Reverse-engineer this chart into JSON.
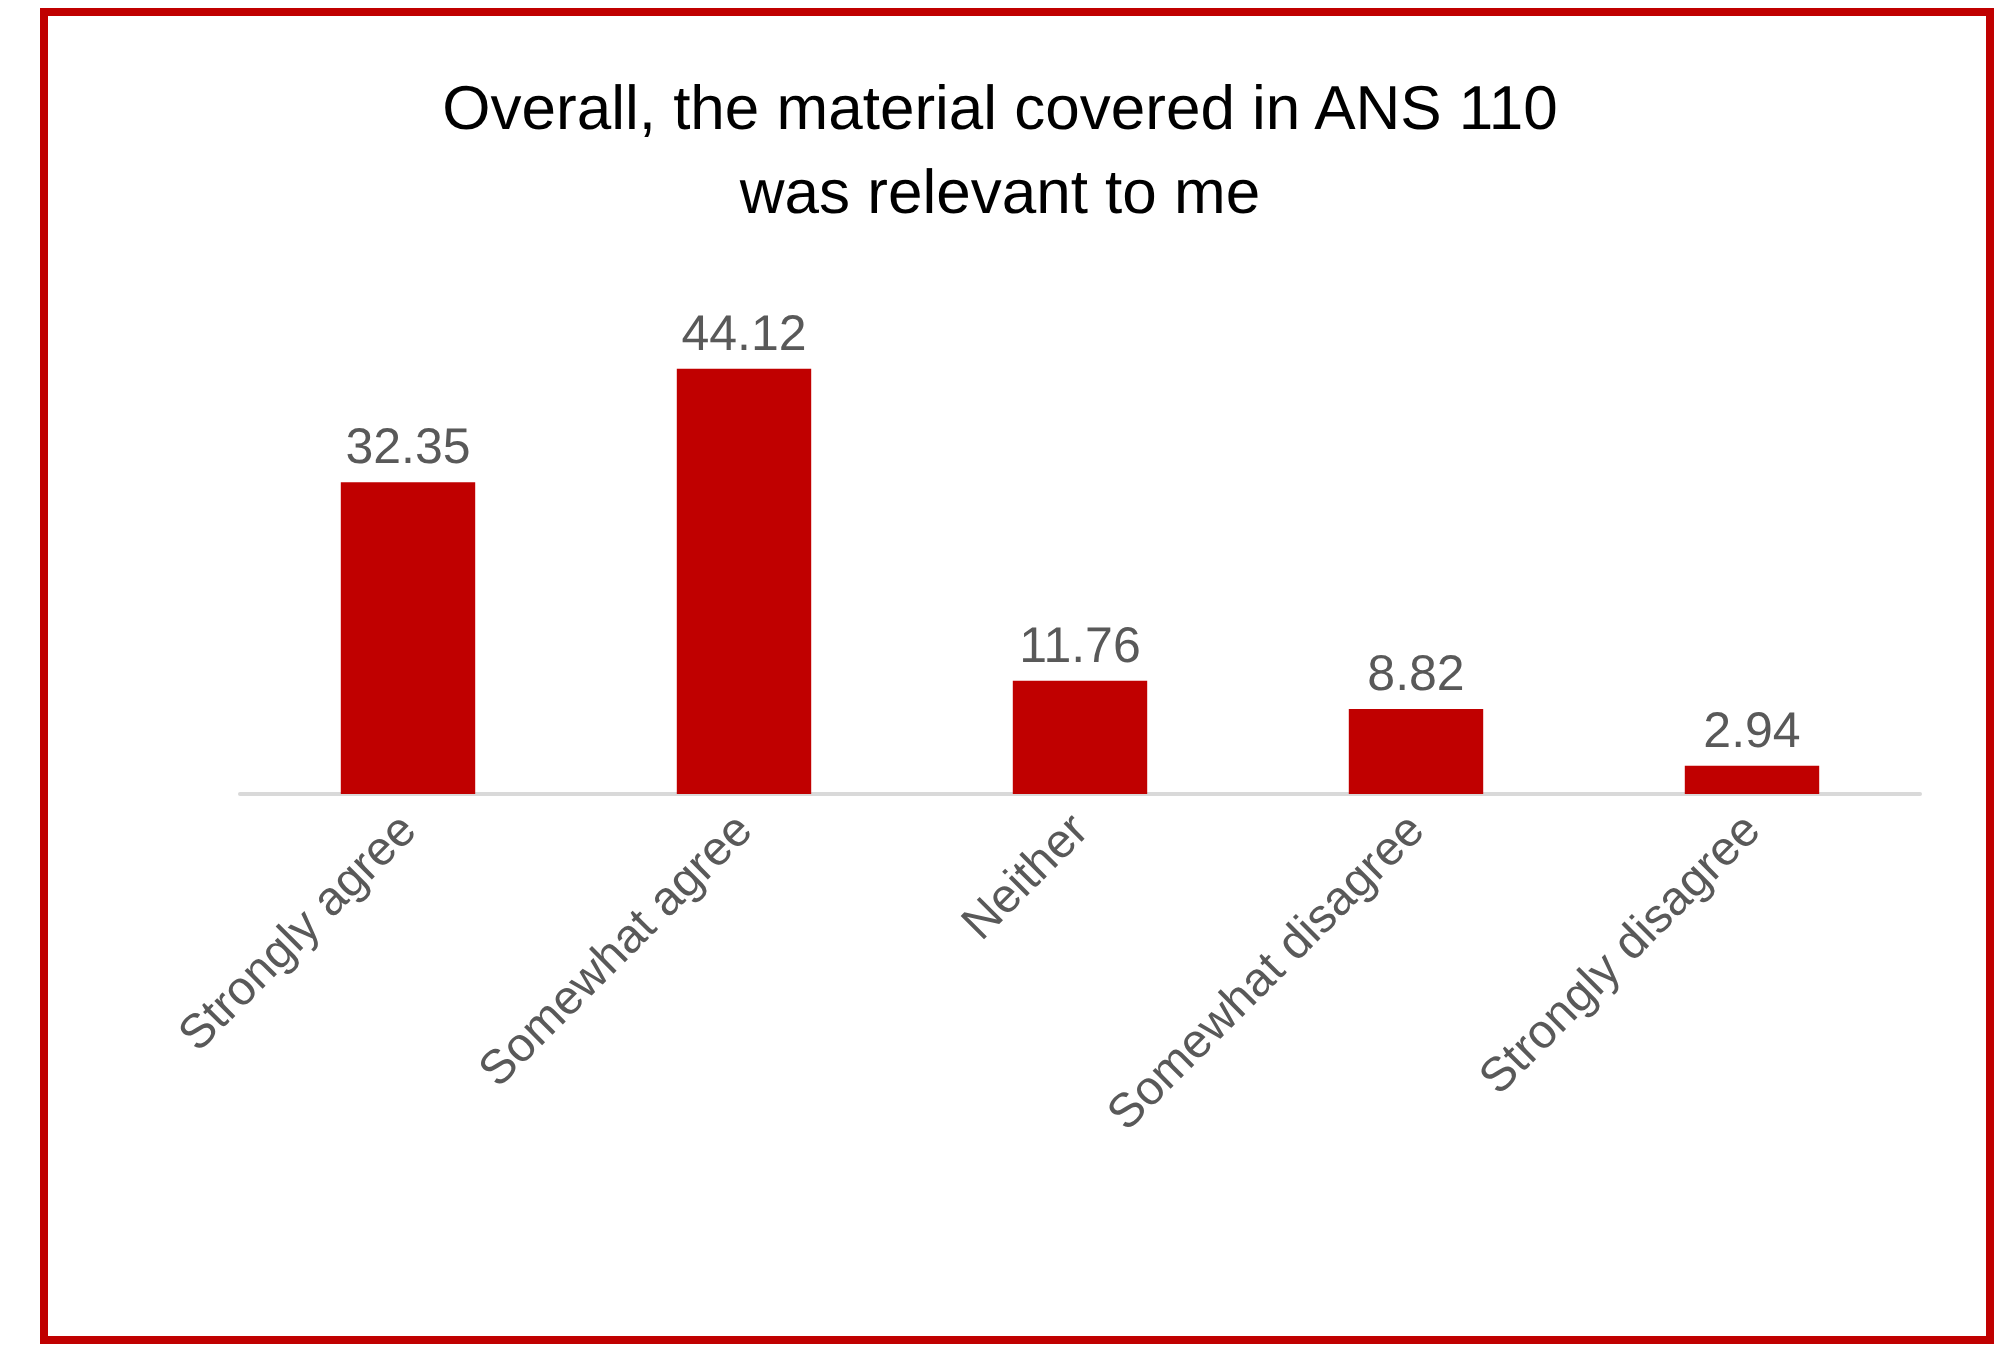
{
  "chart_data": {
    "type": "bar",
    "title": "Overall, the material covered in ANS 110\nwas relevant to me",
    "categories": [
      "Strongly agree",
      "Somewhat agree",
      "Neither",
      "Somewhat disagree",
      "Strongly disagree"
    ],
    "values": [
      32.35,
      44.12,
      11.76,
      8.82,
      2.94
    ],
    "color": "#c00000",
    "data_labels": true
  }
}
